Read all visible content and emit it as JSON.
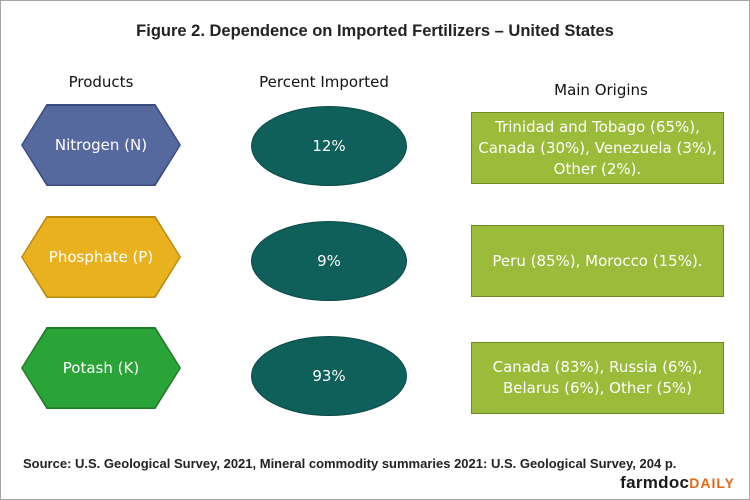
{
  "title": "Figure 2. Dependence on Imported Fertilizers – United States",
  "headers": {
    "products": "Products",
    "percent": "Percent Imported",
    "origins": "Main Origins"
  },
  "rows": [
    {
      "product": "Nitrogen (N)",
      "percent": "12%",
      "origins": "Trinidad and Tobago (65%), Canada (30%), Venezuela (3%), Other (2%).",
      "hex_fill": "#56699f",
      "hex_stroke": "#3a4b80"
    },
    {
      "product": "Phosphate (P)",
      "percent": "9%",
      "origins": "Peru (85%), Morocco (15%).",
      "hex_fill": "#e8b11d",
      "hex_stroke": "#b98a0c"
    },
    {
      "product": "Potash (K)",
      "percent": "93%",
      "origins": "Canada (83%), Russia (6%), Belarus (6%), Other (5%)",
      "hex_fill": "#2aa337",
      "hex_stroke": "#1a7a25"
    }
  ],
  "source": "Source: U.S. Geological Survey, 2021, Mineral commodity summaries 2021: U.S. Geological Survey, 204 p.",
  "logo": {
    "part1": "farmdoc",
    "part2": "DAILY"
  },
  "colors": {
    "ellipse_fill": "#0f5f5a",
    "origin_box_fill": "#9bbb3a"
  }
}
